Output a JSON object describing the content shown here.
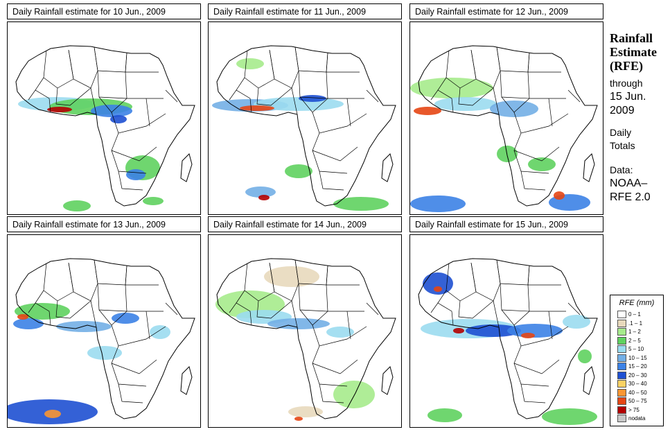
{
  "panels": [
    {
      "title": "Daily Rainfall estimate for  10 Jun., 2009"
    },
    {
      "title": "Daily Rainfall estimate for  11 Jun., 2009"
    },
    {
      "title": "Daily Rainfall estimate for  12 Jun., 2009"
    },
    {
      "title": "Daily Rainfall estimate for  13 Jun., 2009"
    },
    {
      "title": "Daily Rainfall estimate for  14 Jun., 2009"
    },
    {
      "title": "Daily Rainfall estimate for  15 Jun., 2009"
    }
  ],
  "side": {
    "heading_1": "Rainfall",
    "heading_2": "Estimate",
    "heading_3": "(RFE)",
    "through": "through",
    "end_date_1": "15 Jun.",
    "end_date_2": "2009",
    "totals_1": "Daily",
    "totals_2": "Totals",
    "data_1": "Data:",
    "data_2": "NOAA–",
    "data_3": "RFE 2.0"
  },
  "legend": {
    "title": "RFE (mm)",
    "items": [
      {
        "label": "0 – 1",
        "color": "#ffffff"
      },
      {
        "label": ".1 – 1",
        "color": "#e8d9bc"
      },
      {
        "label": "1 – 2",
        "color": "#a6eb8c"
      },
      {
        "label": "2 – 5",
        "color": "#5fd25f"
      },
      {
        "label": "5 – 10",
        "color": "#9bdcf0"
      },
      {
        "label": "10 – 15",
        "color": "#73afe6"
      },
      {
        "label": "15 – 20",
        "color": "#3c82e6"
      },
      {
        "label": "20 – 30",
        "color": "#1e50d2"
      },
      {
        "label": "30 – 40",
        "color": "#fad264"
      },
      {
        "label": "40 – 50",
        "color": "#fa9632"
      },
      {
        "label": "50 – 75",
        "color": "#e64614"
      },
      {
        "label": "> 75",
        "color": "#b40000"
      },
      {
        "label": "nodata",
        "color": "#c8c8c8"
      }
    ]
  }
}
